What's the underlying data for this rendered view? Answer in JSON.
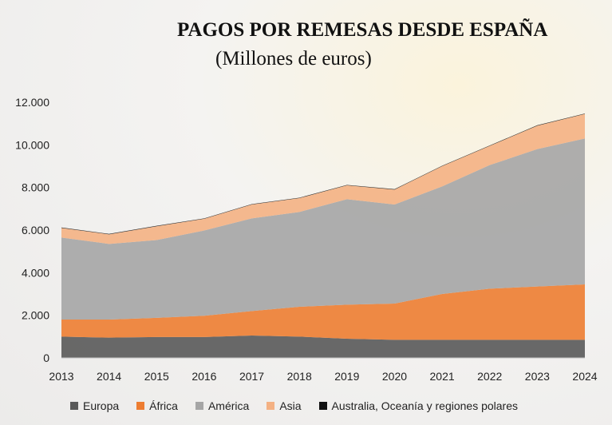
{
  "chart_data": {
    "type": "area",
    "stacked": true,
    "title": "PAGOS POR REMESAS DESDE ESPAÑA",
    "subtitle": "(Millones de euros)",
    "xlabel": "",
    "ylabel": "",
    "x": [
      "2013",
      "2014",
      "2015",
      "2016",
      "2017",
      "2018",
      "2019",
      "2020",
      "2021",
      "2022",
      "2023",
      "2024"
    ],
    "ylim": [
      0,
      12000
    ],
    "yticks": [
      "0",
      "2.000",
      "4.000",
      "6.000",
      "8.000",
      "10.000",
      "12.000"
    ],
    "grid": false,
    "legend_position": "bottom",
    "series": [
      {
        "name": "Europa",
        "color": "#595959",
        "values": [
          1000,
          950,
          980,
          980,
          1050,
          1000,
          900,
          850,
          850,
          850,
          850,
          850
        ]
      },
      {
        "name": "África",
        "color": "#ed7d31",
        "values": [
          800,
          850,
          900,
          1000,
          1150,
          1400,
          1600,
          1700,
          2150,
          2400,
          2500,
          2600
        ]
      },
      {
        "name": "América",
        "color": "#a5a5a5",
        "values": [
          3850,
          3550,
          3650,
          4000,
          4350,
          4450,
          4950,
          4650,
          5050,
          5800,
          6450,
          6850
        ]
      },
      {
        "name": "Asia",
        "color": "#f4b183",
        "values": [
          450,
          450,
          650,
          550,
          650,
          650,
          650,
          700,
          950,
          900,
          1100,
          1150
        ]
      },
      {
        "name": "Australia, Oceanía y regiones polares",
        "color": "#111111",
        "values": [
          20,
          20,
          20,
          20,
          20,
          20,
          20,
          20,
          20,
          20,
          20,
          20
        ]
      }
    ]
  }
}
